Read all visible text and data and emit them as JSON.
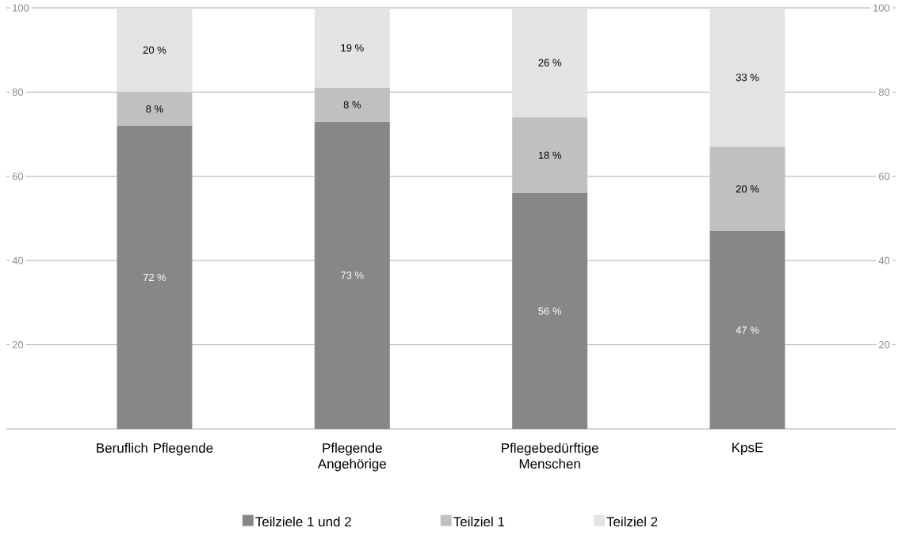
{
  "chart_data": {
    "type": "bar",
    "stacked": true,
    "categories": [
      "Beruflich Pflegende",
      "Pflegende Angehörige",
      "Pflegebedürftige Menschen",
      "KpsE"
    ],
    "series": [
      {
        "name": "Teilziele 1 und 2",
        "color": "#878787",
        "values": [
          72,
          73,
          56,
          47
        ],
        "value_labels": [
          "72 %",
          "73 %",
          "56 %",
          "47 %"
        ]
      },
      {
        "name": "Teilziel 1",
        "color": "#c0c0c0",
        "values": [
          8,
          8,
          18,
          20
        ],
        "value_labels": [
          "8 %",
          "8 %",
          "18 %",
          "20 %"
        ]
      },
      {
        "name": "Teilziel 2",
        "color": "#e3e3e3",
        "values": [
          20,
          19,
          26,
          33
        ],
        "value_labels": [
          "20 %",
          "19 %",
          "26 %",
          "33 %"
        ]
      }
    ],
    "ylim": [
      0,
      100
    ],
    "yticks": [
      20,
      40,
      60,
      80,
      100
    ],
    "y2lim": [
      0,
      100
    ],
    "y2ticks": [
      20,
      40,
      60,
      80,
      100
    ],
    "grid": "y",
    "legend": "bottom"
  }
}
